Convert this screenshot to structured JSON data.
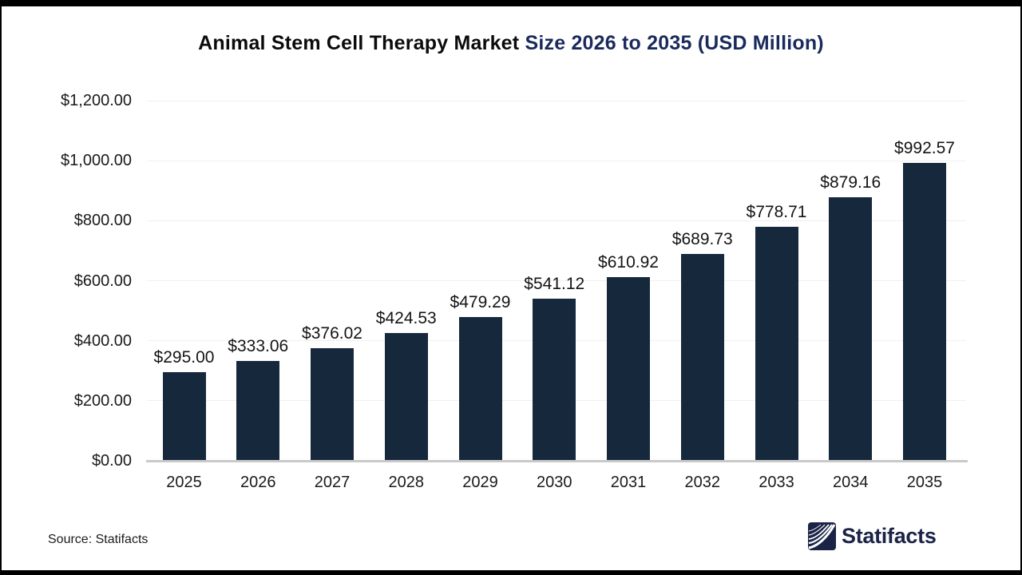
{
  "title": {
    "text_black": "Animal Stem Cell Therapy Market",
    "text_accent": "Size 2026 to 2035 (USD Million)"
  },
  "source_note": "Source: Statifacts",
  "brand": {
    "name": "Statifacts",
    "logo_icon": "statifacts-waves-icon"
  },
  "colors": {
    "bar": "#16293C",
    "title_accent": "#1A2A5C",
    "logo_navy": "#1B2447",
    "gridline": "#F0F0F0",
    "axis_line": "#C9C9C9",
    "label_text": "#1A1A1A"
  },
  "chart_data": {
    "type": "bar",
    "title": "Animal Stem Cell Therapy Market Size 2026 to 2035 (USD Million)",
    "categories": [
      "2025",
      "2026",
      "2027",
      "2028",
      "2029",
      "2030",
      "2031",
      "2032",
      "2033",
      "2034",
      "2035"
    ],
    "values": [
      295.0,
      333.06,
      376.02,
      424.53,
      479.29,
      541.12,
      610.92,
      689.73,
      778.71,
      879.16,
      992.57
    ],
    "value_labels": [
      "$295.00",
      "$333.06",
      "$376.02",
      "$424.53",
      "$479.29",
      "$541.12",
      "$610.92",
      "$689.73",
      "$778.71",
      "$879.16",
      "$992.57"
    ],
    "unit": "USD Million",
    "xlabel": "",
    "ylabel": "",
    "ylim": [
      0,
      1200
    ],
    "y_ticks": [
      0,
      200,
      400,
      600,
      800,
      1000,
      1200
    ],
    "y_tick_labels": [
      "$0.00",
      "$200.00",
      "$400.00",
      "$600.00",
      "$800.00",
      "$1,000.00",
      "$1,200.00"
    ],
    "grid": true,
    "legend": false,
    "bar_color": "#16293C"
  }
}
